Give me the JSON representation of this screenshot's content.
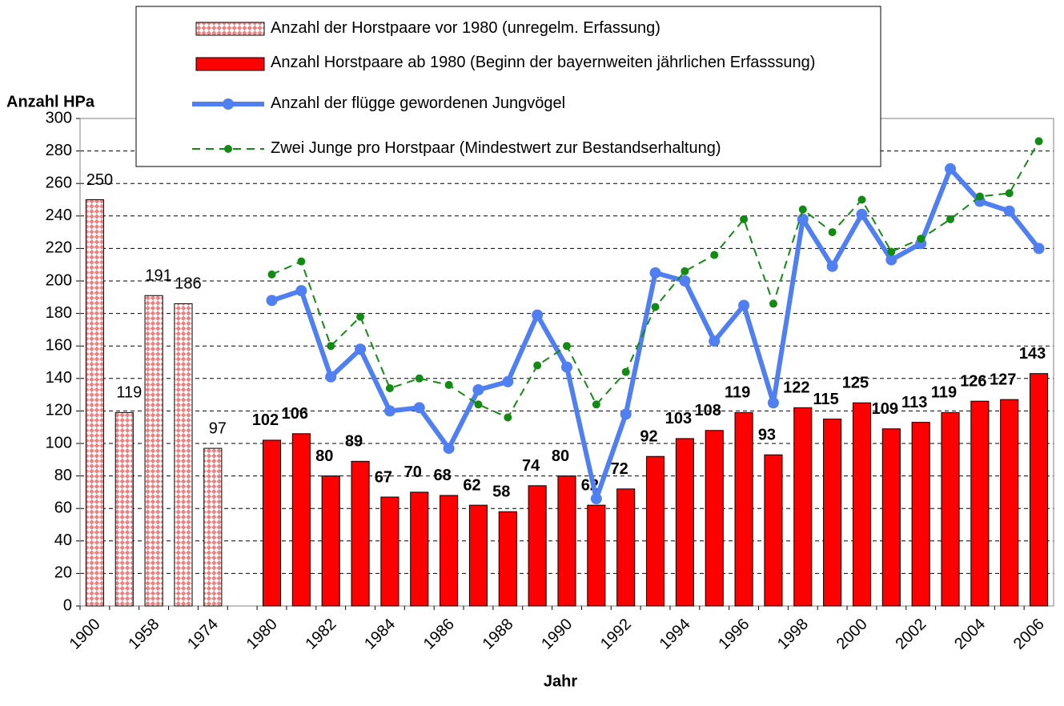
{
  "chart_data": {
    "type": "bar",
    "x_label": "Jahr",
    "y_label": "Anzahl HPa",
    "categories": [
      "1900",
      null,
      "1958",
      null,
      "1974",
      null,
      "1980",
      null,
      "1982",
      null,
      "1984",
      null,
      "1986",
      null,
      "1988",
      null,
      "1990",
      null,
      "1992",
      null,
      "1994",
      null,
      "1996",
      null,
      "1998",
      null,
      "2000",
      null,
      "2002",
      null,
      "2004",
      null,
      "2006"
    ],
    "series": [
      {
        "name": "Anzahl der Horstpaare vor 1980 (unregelm. Erfassung)",
        "type": "bar",
        "color": "#f08080",
        "values": [
          250,
          119,
          191,
          186,
          97,
          null,
          null,
          null,
          null,
          null,
          null,
          null,
          null,
          null,
          null,
          null,
          null,
          null,
          null,
          null,
          null,
          null,
          null,
          null,
          null,
          null,
          null,
          null,
          null,
          null,
          null,
          null,
          null
        ]
      },
      {
        "name": "Anzahl Horstpaare ab 1980 (Beginn der bayernweiten jährlichen Erfasssung)",
        "type": "bar",
        "color": "#ff0000",
        "values": [
          null,
          null,
          null,
          null,
          null,
          null,
          102,
          106,
          80,
          89,
          67,
          70,
          68,
          62,
          58,
          74,
          80,
          62,
          72,
          92,
          103,
          108,
          119,
          93,
          122,
          115,
          125,
          109,
          113,
          119,
          126,
          127,
          143
        ]
      },
      {
        "name": "Anzahl der flügge gewordenen Jungvögel",
        "type": "line",
        "line_style": "solid",
        "color": "#4f7ff0",
        "values": [
          null,
          null,
          null,
          null,
          null,
          null,
          188,
          194,
          141,
          158,
          120,
          122,
          97,
          133,
          138,
          179,
          147,
          66,
          118,
          205,
          200,
          163,
          185,
          125,
          238,
          209,
          241,
          213,
          223,
          269,
          249,
          243,
          220
        ]
      },
      {
        "name": "Zwei Junge pro Horstpaar (Mindestwert zur Bestandserhaltung)",
        "type": "line",
        "line_style": "dashed",
        "color": "#138a13",
        "values": [
          null,
          null,
          null,
          null,
          null,
          null,
          204,
          212,
          160,
          178,
          134,
          140,
          136,
          124,
          116,
          148,
          160,
          124,
          144,
          184,
          206,
          216,
          238,
          186,
          244,
          230,
          250,
          218,
          226,
          238,
          252,
          254,
          286
        ]
      }
    ],
    "ylim": [
      0,
      300
    ],
    "yticks": [
      0,
      20,
      40,
      60,
      80,
      100,
      120,
      140,
      160,
      180,
      200,
      220,
      240,
      260,
      280,
      300
    ],
    "grid": true,
    "legend": "top"
  }
}
